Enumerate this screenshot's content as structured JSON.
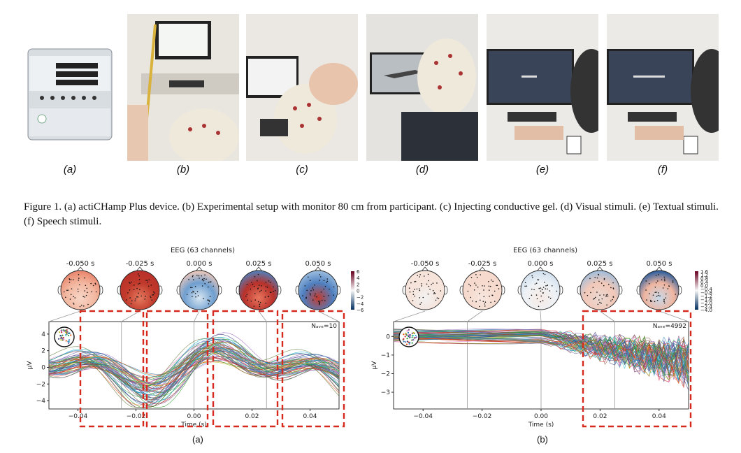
{
  "photo_labels": [
    "(a)",
    "(b)",
    "(c)",
    "(d)",
    "(e)",
    "(f)"
  ],
  "figure1_caption": "Figure 1. (a) actiCHamp Plus device. (b) Experimental setup with monitor 80 cm from participant. (c) Injecting conductive gel. (d) Visual stimuli. (e) Textual stimuli. (f) Speech stimuli.",
  "subfigure_labels": [
    "(a)",
    "(b)"
  ],
  "chart_data": [
    {
      "type": "line",
      "title": "EEG (63 channels)",
      "topomap_times": [
        "-0.050 s",
        "-0.025 s",
        "0.000 s",
        "0.025 s",
        "0.050 s"
      ],
      "colorbar_ticks": [
        "6",
        "4",
        "2",
        "0",
        "−2",
        "−4",
        "−6"
      ],
      "nave": "Nₐᵥₑ=10",
      "xlabel": "Time (s)",
      "ylabel": "µV",
      "xlim": [
        -0.05,
        0.05
      ],
      "ylim": [
        -5,
        5.5
      ],
      "xticks": [
        "−0.04",
        "−0.02",
        "0.00",
        "0.02",
        "0.04"
      ],
      "yticks": [
        "4",
        "2",
        "0",
        "−2",
        "−4"
      ],
      "series_count": 63
    },
    {
      "type": "line",
      "title": "EEG (63 channels)",
      "topomap_times": [
        "-0.050 s",
        "-0.025 s",
        "0.000 s",
        "0.025 s",
        "0.050 s"
      ],
      "colorbar_ticks": [
        "1.6",
        "1.2",
        "0.8",
        "0.4",
        "0.0",
        "−0.4",
        "−0.8",
        "−1.2",
        "−1.6",
        "−2.0",
        "−2.4",
        "−4.0"
      ],
      "nave": "Nₐᵥₑ=4992",
      "xlabel": "Time (s)",
      "ylabel": "µV",
      "xlim": [
        -0.05,
        0.05
      ],
      "ylim": [
        -3.9,
        0.8
      ],
      "xticks": [
        "−0.04",
        "−0.02",
        "0.00",
        "0.02",
        "0.04"
      ],
      "yticks": [
        "0",
        "−1",
        "−2",
        "−3"
      ],
      "series_count": 63
    }
  ]
}
